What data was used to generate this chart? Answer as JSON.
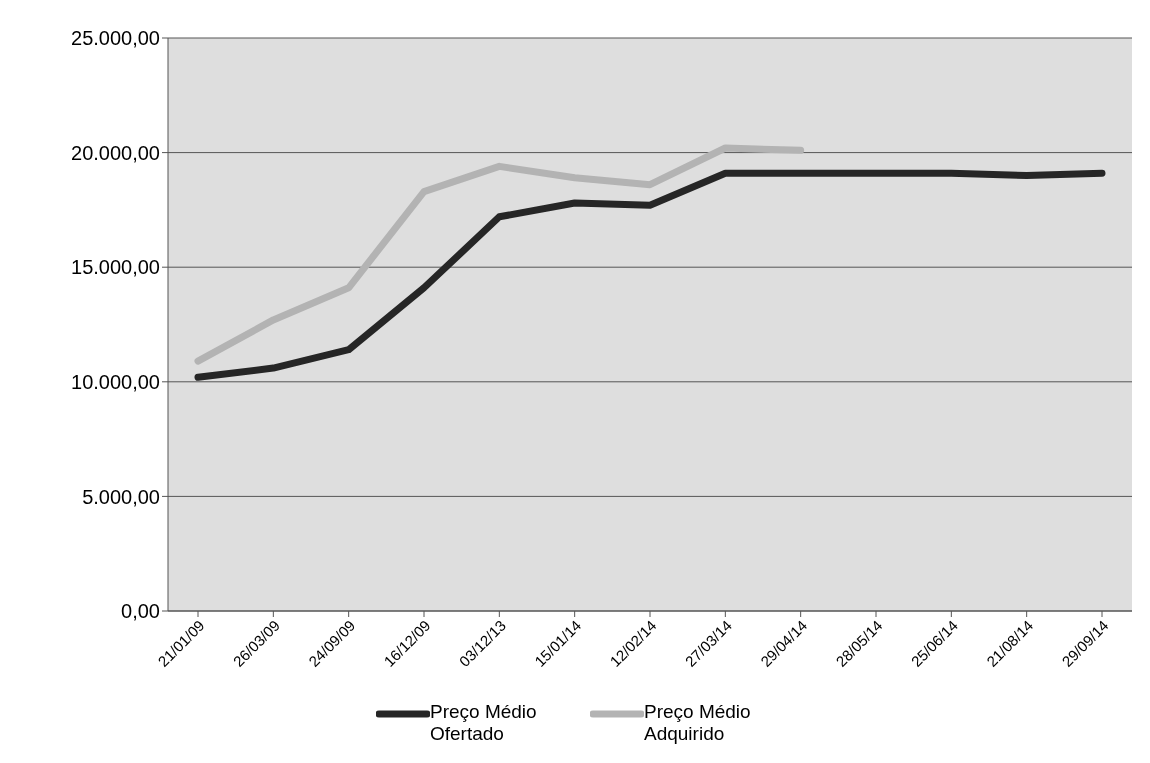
{
  "chart_data": {
    "type": "line",
    "categories": [
      "21/01/09",
      "26/03/09",
      "24/09/09",
      "16/12/09",
      "03/12/13",
      "15/01/14",
      "12/02/14",
      "27/03/14",
      "29/04/14",
      "28/05/14",
      "25/06/14",
      "21/08/14",
      "29/09/14"
    ],
    "series": [
      {
        "name": "Preço Médio Ofertado",
        "color": "#262626",
        "values": [
          10200,
          10600,
          11400,
          14100,
          17200,
          17800,
          17700,
          19100,
          19100,
          19100,
          19100,
          19000,
          19100
        ]
      },
      {
        "name": "Preço Médio Adquirido",
        "color": "#b3b3b3",
        "values": [
          10900,
          12700,
          14100,
          18300,
          19400,
          18900,
          18600,
          20200,
          20100,
          null,
          null,
          null,
          null
        ]
      }
    ],
    "ylim": [
      0,
      25000
    ],
    "yticks": [
      {
        "value": 0,
        "label": "0,00"
      },
      {
        "value": 5000,
        "label": "5.000,00"
      },
      {
        "value": 10000,
        "label": "10.000,00"
      },
      {
        "value": 15000,
        "label": "15.000,00"
      },
      {
        "value": 20000,
        "label": "20.000,00"
      },
      {
        "value": 25000,
        "label": "25.000,00"
      }
    ],
    "grid": "y",
    "legend": "bottom",
    "marker": "none",
    "line_style": "solid"
  }
}
